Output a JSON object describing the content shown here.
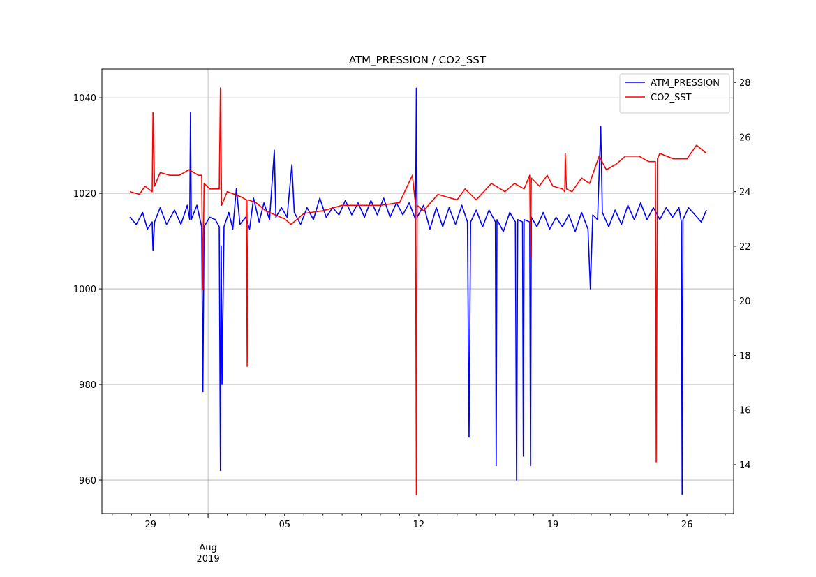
{
  "chart_data": {
    "type": "line",
    "title": "ATM_PRESSION / CO2_SST",
    "xlim": [
      "2019-07-26 11:00",
      "2019-08-28 10:30"
    ],
    "xticks": [
      {
        "value": "2019-07-29 00:00",
        "label": "29"
      },
      {
        "value": "2019-08-05 00:00",
        "label": "05"
      },
      {
        "value": "2019-08-12 00:00",
        "label": "12"
      },
      {
        "value": "2019-08-19 00:00",
        "label": "19"
      },
      {
        "value": "2019-08-26 00:00",
        "label": "26"
      }
    ],
    "x_major_ticks": [
      {
        "value": "2019-08-01 00:00",
        "label": "Aug\n2019"
      }
    ],
    "ylim": [
      953,
      1046
    ],
    "yticks": [
      960,
      980,
      1000,
      1020,
      1040
    ],
    "y2lim": [
      12.21,
      28.49
    ],
    "y2ticks": [
      14,
      16,
      18,
      20,
      22,
      24,
      26,
      28
    ],
    "grid": true,
    "legend": "upper right",
    "series": [
      {
        "name": "ATM_PRESSION",
        "color": "#0000ff",
        "axis": "y",
        "x": [
          "2019-07-27 22:00",
          "2019-07-28 06:00",
          "2019-07-28 14:00",
          "2019-07-28 20:00",
          "2019-07-29 02:00",
          "2019-07-29 03:00",
          "2019-07-29 05:00",
          "2019-07-29 12:00",
          "2019-07-29 20:00",
          "2019-07-30 06:00",
          "2019-07-30 14:00",
          "2019-07-30 22:00",
          "2019-07-31 01:00",
          "2019-07-31 02:00",
          "2019-07-31 03:00",
          "2019-07-31 10:00",
          "2019-07-31 16:00",
          "2019-07-31 17:30",
          "2019-07-31 19:00",
          "2019-08-01 02:00",
          "2019-08-01 09:00",
          "2019-08-01 14:00",
          "2019-08-01 15:30",
          "2019-08-01 16:30",
          "2019-08-01 17:30",
          "2019-08-01 20:00",
          "2019-08-02 02:00",
          "2019-08-02 07:00",
          "2019-08-02 11:30",
          "2019-08-02 16:00",
          "2019-08-02 23:00",
          "2019-08-03 04:00",
          "2019-08-03 09:00",
          "2019-08-03 16:00",
          "2019-08-03 22:00",
          "2019-08-04 05:00",
          "2019-08-04 11:00",
          "2019-08-04 13:00",
          "2019-08-04 20:00",
          "2019-08-05 03:00",
          "2019-08-05 09:00",
          "2019-08-05 12:00",
          "2019-08-05 20:00",
          "2019-08-06 04:00",
          "2019-08-06 12:00",
          "2019-08-06 20:00",
          "2019-08-07 04:00",
          "2019-08-07 12:00",
          "2019-08-07 20:00",
          "2019-08-08 04:00",
          "2019-08-08 12:00",
          "2019-08-08 20:00",
          "2019-08-09 04:00",
          "2019-08-09 12:00",
          "2019-08-09 20:00",
          "2019-08-10 04:00",
          "2019-08-10 12:00",
          "2019-08-10 20:00",
          "2019-08-11 04:00",
          "2019-08-11 12:00",
          "2019-08-11 20:00",
          "2019-08-11 21:00",
          "2019-08-11 22:00",
          "2019-08-12 06:00",
          "2019-08-12 14:00",
          "2019-08-12 22:00",
          "2019-08-13 06:00",
          "2019-08-13 14:00",
          "2019-08-13 22:00",
          "2019-08-14 06:00",
          "2019-08-14 13:00",
          "2019-08-14 15:00",
          "2019-08-14 17:00",
          "2019-08-15 00:00",
          "2019-08-15 08:00",
          "2019-08-15 16:00",
          "2019-08-16 00:00",
          "2019-08-16 01:00",
          "2019-08-16 02:00",
          "2019-08-16 10:00",
          "2019-08-16 18:00",
          "2019-08-17 01:00",
          "2019-08-17 02:30",
          "2019-08-17 04:00",
          "2019-08-17 10:00",
          "2019-08-17 11:00",
          "2019-08-17 12:00",
          "2019-08-17 19:00",
          "2019-08-17 20:00",
          "2019-08-17 21:00",
          "2019-08-18 04:00",
          "2019-08-18 12:00",
          "2019-08-18 20:00",
          "2019-08-19 04:00",
          "2019-08-19 12:00",
          "2019-08-19 20:00",
          "2019-08-20 04:00",
          "2019-08-20 12:00",
          "2019-08-20 20:00",
          "2019-08-20 23:00",
          "2019-08-21 02:00",
          "2019-08-21 08:00",
          "2019-08-21 12:00",
          "2019-08-21 14:00",
          "2019-08-21 22:00",
          "2019-08-22 06:00",
          "2019-08-22 14:00",
          "2019-08-22 22:00",
          "2019-08-23 06:00",
          "2019-08-23 14:00",
          "2019-08-23 22:00",
          "2019-08-24 06:00",
          "2019-08-24 14:00",
          "2019-08-24 22:00",
          "2019-08-25 06:00",
          "2019-08-25 14:00",
          "2019-08-25 17:00",
          "2019-08-25 18:00",
          "2019-08-25 19:00",
          "2019-08-26 02:00",
          "2019-08-26 10:00",
          "2019-08-26 18:00",
          "2019-08-27 00:30"
        ],
        "values": [
          1015,
          1013.5,
          1016,
          1012.5,
          1014,
          1008,
          1014,
          1017,
          1013.5,
          1016.5,
          1013.5,
          1017.5,
          1014.5,
          1037,
          1014.5,
          1017.5,
          1013,
          978.5,
          1013,
          1015,
          1014.5,
          1013,
          962,
          1009,
          980,
          1013,
          1016,
          1012.5,
          1021,
          1013.5,
          1015,
          1012.5,
          1019,
          1014,
          1018,
          1014.5,
          1029,
          1015,
          1017,
          1015,
          1026,
          1016,
          1013.5,
          1017,
          1014.5,
          1019,
          1015,
          1017,
          1015.5,
          1018.5,
          1015.5,
          1018,
          1015,
          1018.5,
          1015.5,
          1019,
          1015,
          1018,
          1015.5,
          1018,
          1014.5,
          1042,
          1015,
          1017.5,
          1012.5,
          1017,
          1013,
          1017,
          1013.5,
          1017.5,
          1014,
          969,
          1014,
          1016.5,
          1013,
          1016.5,
          1014,
          963,
          1014.5,
          1012,
          1016,
          1014,
          960,
          1014.5,
          1014,
          965,
          1014.5,
          1014,
          963,
          1015,
          1013,
          1016,
          1012.5,
          1015,
          1013,
          1015.5,
          1012,
          1016,
          1012.5,
          1000,
          1015.5,
          1014.5,
          1034,
          1016,
          1013,
          1016.5,
          1013.5,
          1017.5,
          1014.5,
          1018,
          1014.5,
          1017,
          1014.5,
          1017,
          1015,
          1017,
          1014,
          957,
          1014.5,
          1017,
          1015.5,
          1014,
          1016.5
        ]
      },
      {
        "name": "CO2_SST",
        "color": "#ff0000",
        "axis": "y2",
        "x": [
          "2019-07-27 22:00",
          "2019-07-28 10:00",
          "2019-07-28 17:00",
          "2019-07-29 02:00",
          "2019-07-29 03:00",
          "2019-07-29 05:00",
          "2019-07-29 12:00",
          "2019-07-30 00:00",
          "2019-07-30 12:00",
          "2019-07-31 00:00",
          "2019-07-31 12:00",
          "2019-07-31 16:00",
          "2019-07-31 17:30",
          "2019-07-31 19:00",
          "2019-08-01 02:00",
          "2019-08-01 14:00",
          "2019-08-01 15:30",
          "2019-08-01 17:00",
          "2019-08-02 00:00",
          "2019-08-02 18:00",
          "2019-08-03 00:00",
          "2019-08-03 01:00",
          "2019-08-03 02:00",
          "2019-08-03 12:00",
          "2019-08-04 00:00",
          "2019-08-05 00:00",
          "2019-08-05 08:00",
          "2019-08-06 00:00",
          "2019-08-07 00:00",
          "2019-08-08 00:00",
          "2019-08-09 00:00",
          "2019-08-10 00:00",
          "2019-08-11 00:00",
          "2019-08-11 16:00",
          "2019-08-11 20:00",
          "2019-08-11 21:00",
          "2019-08-11 22:00",
          "2019-08-12 06:00",
          "2019-08-13 00:00",
          "2019-08-14 00:00",
          "2019-08-14 10:00",
          "2019-08-15 00:00",
          "2019-08-15 19:00",
          "2019-08-16 12:00",
          "2019-08-17 00:00",
          "2019-08-17 12:00",
          "2019-08-17 19:00",
          "2019-08-17 20:00",
          "2019-08-17 21:00",
          "2019-08-18 07:00",
          "2019-08-18 17:00",
          "2019-08-19 00:00",
          "2019-08-19 12:00",
          "2019-08-19 15:00",
          "2019-08-19 15:30",
          "2019-08-19 17:00",
          "2019-08-20 00:00",
          "2019-08-20 12:00",
          "2019-08-20 22:00",
          "2019-08-21 10:00",
          "2019-08-21 19:00",
          "2019-08-22 07:00",
          "2019-08-22 19:00",
          "2019-08-23 12:00",
          "2019-08-24 00:00",
          "2019-08-24 08:30",
          "2019-08-24 09:30",
          "2019-08-24 11:00",
          "2019-08-24 14:00",
          "2019-08-25 07:00",
          "2019-08-26 00:00",
          "2019-08-26 12:00",
          "2019-08-27 00:30"
        ],
        "values": [
          24,
          23.9,
          24.2,
          24,
          26.9,
          24.2,
          24.7,
          24.6,
          24.6,
          24.8,
          24.6,
          24.6,
          20.4,
          24.3,
          24.1,
          24.1,
          27.8,
          23.5,
          24,
          23.8,
          23.7,
          17.6,
          23.7,
          23.6,
          23.3,
          23,
          22.8,
          23.2,
          23.3,
          23.5,
          23.5,
          23.5,
          23.6,
          24.6,
          23.5,
          12.9,
          23.5,
          23.3,
          23.9,
          23.7,
          24.1,
          23.7,
          24.3,
          24,
          24.3,
          24.1,
          24.6,
          21.6,
          24.5,
          24.2,
          24.6,
          24.2,
          24.1,
          24,
          25.4,
          24.1,
          24,
          24.5,
          24.3,
          25.3,
          24.8,
          25,
          25.3,
          25.3,
          25.1,
          25.1,
          14.1,
          25.2,
          25.4,
          25.2,
          25.2,
          25.7,
          25.4
        ]
      }
    ]
  }
}
